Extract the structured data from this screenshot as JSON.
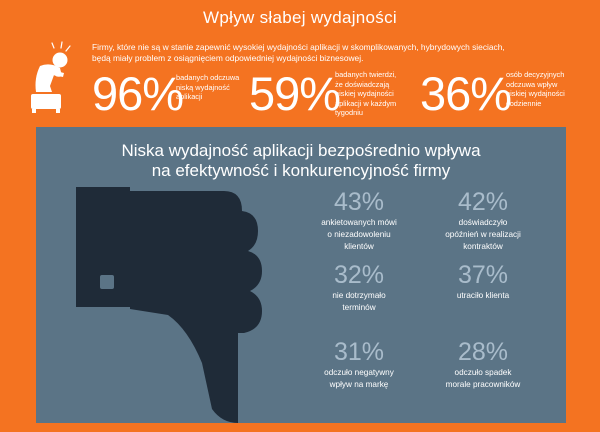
{
  "header": {
    "title": "Wpływ słabej wydajności",
    "intro_lines": [
      "Firmy, które nie są w stanie zapewnić wysokiej wydajności aplikacji w skomplikowanych, hybrydowych sieciach,",
      "będą miały problem z osiągnięciem odpowiedniej wydajności biznesowej."
    ]
  },
  "stats": [
    {
      "value": "96%",
      "desc_lines": [
        "badanych odczuwa",
        "niską wydajność",
        "aplikacji"
      ]
    },
    {
      "value": "59%",
      "desc_lines": [
        "badanych twierdzi,",
        "że doświadczają",
        "niskiej wydajności",
        "aplikacji w każdym",
        "tygodniu"
      ]
    },
    {
      "value": "36%",
      "desc_lines": [
        "osób decyzyjnych",
        "odczuwa wpływ",
        "niskiej wydajności",
        "codziennie"
      ]
    }
  ],
  "panel": {
    "title_lines": [
      "Niska wydajność aplikacji bezpośrednio wpływa",
      "na efektywność i konkurencyjność firmy"
    ],
    "metrics": [
      {
        "value": "43%",
        "label_lines": [
          "ankietowanych mówi",
          "o niezadowoleniu",
          "klientów"
        ]
      },
      {
        "value": "42%",
        "label_lines": [
          "doświadczyło",
          "opóźnień w realizacji",
          "kontraktów"
        ]
      },
      {
        "value": "32%",
        "label_lines": [
          "nie dotrzymało",
          "terminów"
        ]
      },
      {
        "value": "37%",
        "label_lines": [
          "utraciło klienta"
        ]
      },
      {
        "value": "31%",
        "label_lines": [
          "odczuło negatywny",
          "wpływ na markę"
        ]
      },
      {
        "value": "28%",
        "label_lines": [
          "odczuło spadek",
          "morale pracowników"
        ]
      }
    ]
  },
  "icons": {
    "person": "frustrated-person-icon",
    "thumb": "thumbs-down-icon"
  },
  "colors": {
    "background": "#f47321",
    "panel": "#5b7486",
    "metric_value": "#a9bccb",
    "thumb": "#1f2b38"
  }
}
